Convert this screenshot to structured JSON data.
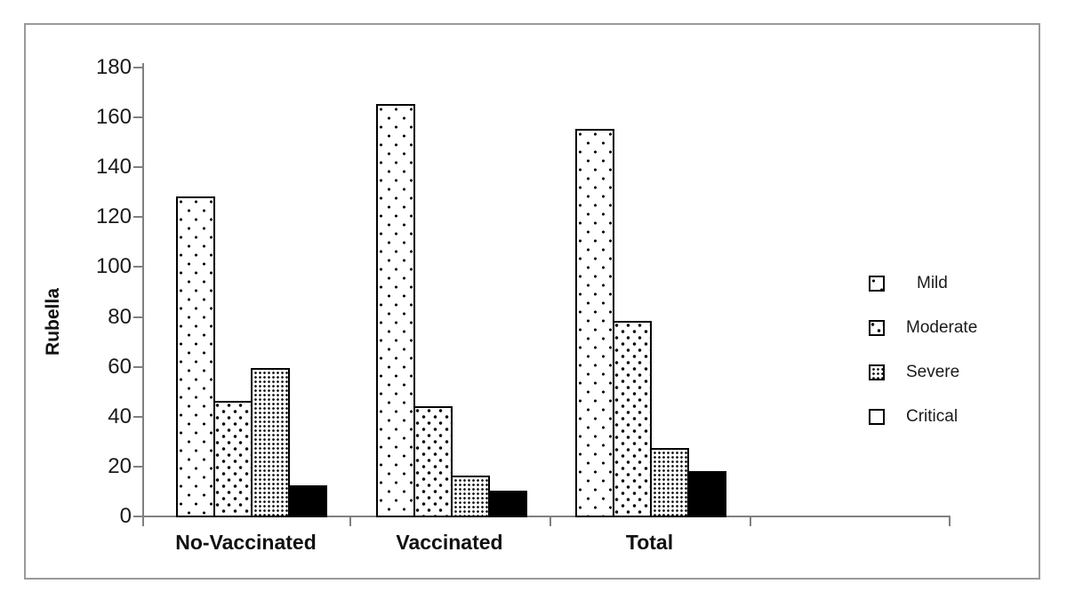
{
  "chart_data": {
    "type": "bar",
    "title": "",
    "ylabel": "Rubella",
    "xlabel": "",
    "categories": [
      "No-Vaccinated",
      "Vaccinated",
      "Total"
    ],
    "series": [
      {
        "name": "Mild",
        "pattern": "sparse-dots",
        "values": [
          128,
          165,
          155
        ]
      },
      {
        "name": "Moderate",
        "pattern": "medium-dots",
        "values": [
          46,
          44,
          78
        ]
      },
      {
        "name": "Severe",
        "pattern": "dense-dots",
        "values": [
          59,
          16,
          27
        ]
      },
      {
        "name": "Critical",
        "pattern": "solid-black",
        "values": [
          12,
          10,
          18
        ]
      }
    ],
    "ylim": [
      0,
      180
    ],
    "ytick_step": 20,
    "yticks": [
      0,
      20,
      40,
      60,
      80,
      100,
      120,
      140,
      160,
      180
    ],
    "grid": false,
    "legend_position": "right",
    "legend_labels": [
      "Mild",
      "Moderate",
      "Severe",
      "Critical"
    ]
  },
  "colors": {
    "axis": "#808080",
    "frame_border": "#9a9a9a",
    "bar_outline": "#000000",
    "bar_fill_critical": "#000000",
    "text": "#1a1a1a",
    "background": "#ffffff"
  }
}
